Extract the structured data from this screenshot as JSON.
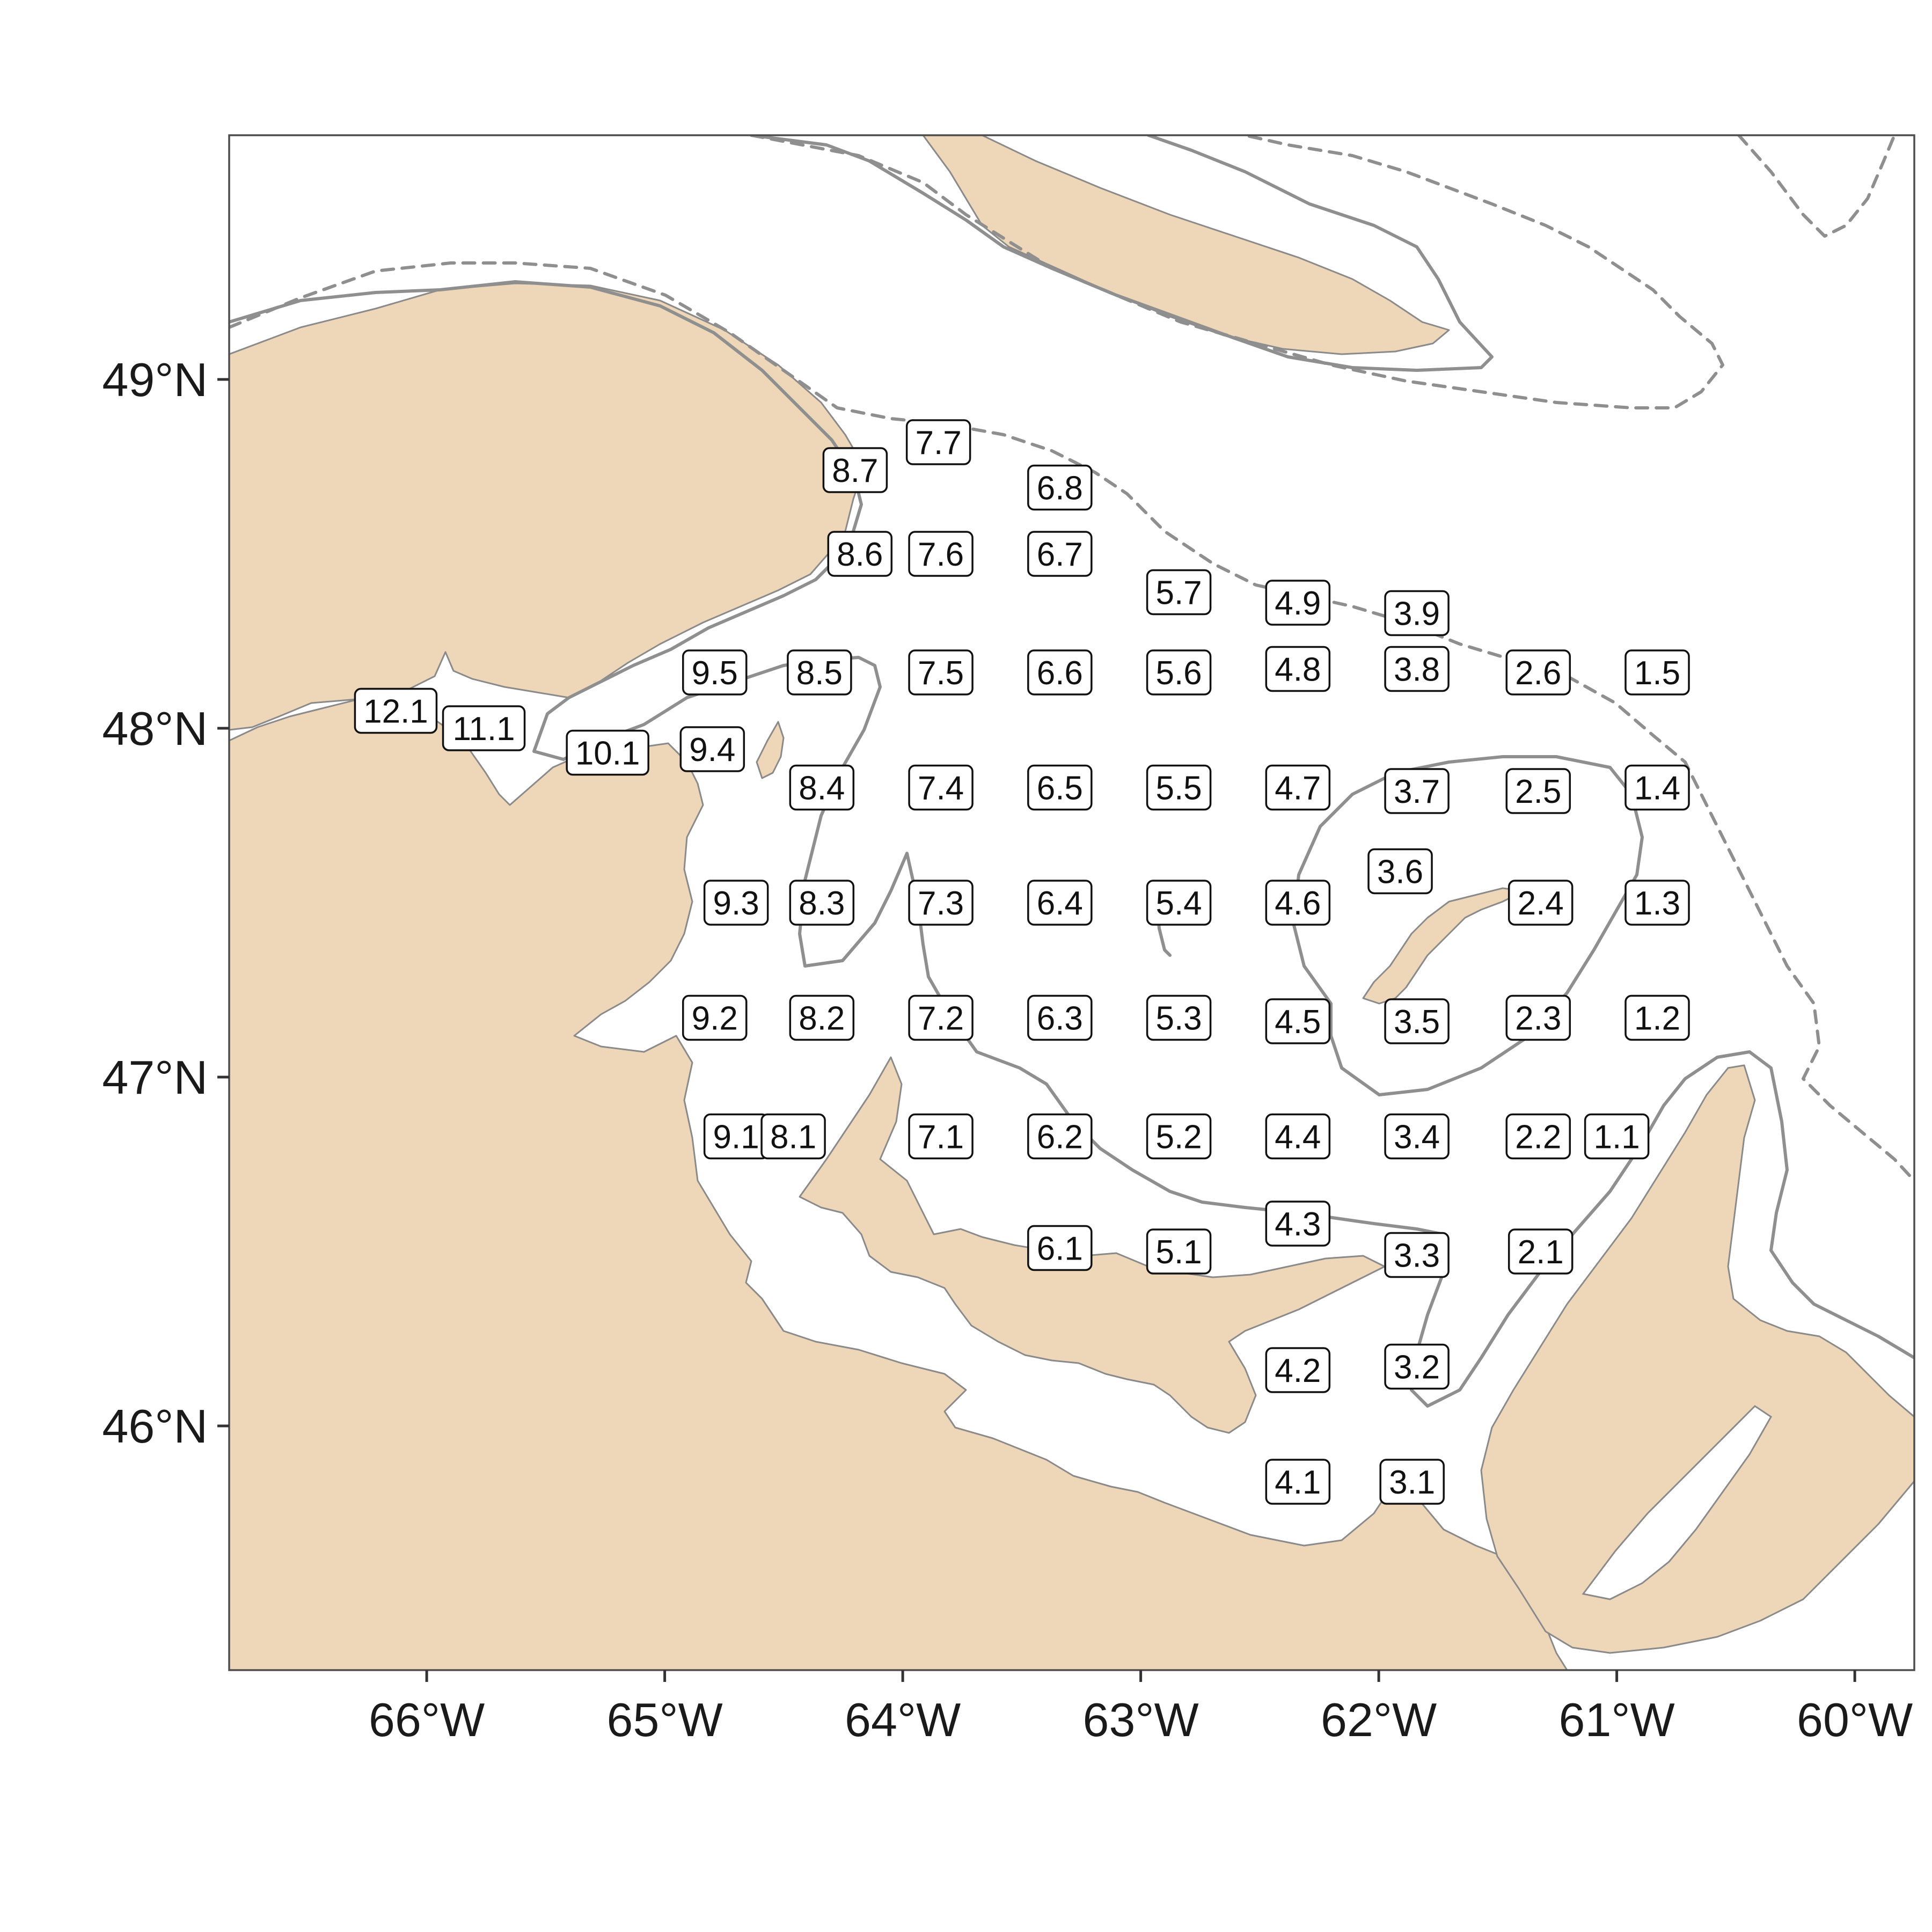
{
  "map": {
    "x_axis_labels": [
      "66°W",
      "65°W",
      "64°W",
      "63°W",
      "62°W",
      "61°W",
      "60°W"
    ],
    "y_axis_labels": [
      "49°N",
      "48°N",
      "47°N",
      "46°N"
    ],
    "colors": {
      "land": "#eed6b9",
      "coast": "#8a8a8a",
      "isobath": "#8f8f8f",
      "frame": "#4d4d4d"
    },
    "isobath_styles": [
      "solid",
      "dashed"
    ]
  },
  "chart_data": {
    "type": "scatter",
    "xlim": [
      -66.83,
      -59.75
    ],
    "ylim": [
      45.3,
      49.7
    ],
    "x_ticks": [
      -66,
      -65,
      -64,
      -63,
      -62,
      -61,
      -60
    ],
    "y_ticks": [
      49,
      48,
      47,
      46
    ],
    "stations": [
      {
        "label": "12.1",
        "lon": -66.13,
        "lat": 48.05
      },
      {
        "label": "11.1",
        "lon": -65.76,
        "lat": 48.0
      },
      {
        "label": "10.1",
        "lon": -65.24,
        "lat": 47.93
      },
      {
        "label": "9.5",
        "lon": -64.79,
        "lat": 48.16
      },
      {
        "label": "9.4",
        "lon": -64.8,
        "lat": 47.94
      },
      {
        "label": "9.3",
        "lon": -64.7,
        "lat": 47.5
      },
      {
        "label": "9.2",
        "lon": -64.79,
        "lat": 47.17
      },
      {
        "label": "9.1",
        "lon": -64.7,
        "lat": 46.83
      },
      {
        "label": "8.7",
        "lon": -64.2,
        "lat": 48.74
      },
      {
        "label": "8.6",
        "lon": -64.18,
        "lat": 48.5
      },
      {
        "label": "8.5",
        "lon": -64.35,
        "lat": 48.16
      },
      {
        "label": "8.4",
        "lon": -64.34,
        "lat": 47.83
      },
      {
        "label": "8.3",
        "lon": -64.34,
        "lat": 47.5
      },
      {
        "label": "8.2",
        "lon": -64.34,
        "lat": 47.17
      },
      {
        "label": "8.1",
        "lon": -64.46,
        "lat": 46.83
      },
      {
        "label": "7.7",
        "lon": -63.85,
        "lat": 48.82
      },
      {
        "label": "7.6",
        "lon": -63.84,
        "lat": 48.5
      },
      {
        "label": "7.5",
        "lon": -63.84,
        "lat": 48.16
      },
      {
        "label": "7.4",
        "lon": -63.84,
        "lat": 47.83
      },
      {
        "label": "7.3",
        "lon": -63.84,
        "lat": 47.5
      },
      {
        "label": "7.2",
        "lon": -63.84,
        "lat": 47.17
      },
      {
        "label": "7.1",
        "lon": -63.84,
        "lat": 46.83
      },
      {
        "label": "6.8",
        "lon": -63.34,
        "lat": 48.69
      },
      {
        "label": "6.7",
        "lon": -63.34,
        "lat": 48.5
      },
      {
        "label": "6.6",
        "lon": -63.34,
        "lat": 48.16
      },
      {
        "label": "6.5",
        "lon": -63.34,
        "lat": 47.83
      },
      {
        "label": "6.4",
        "lon": -63.34,
        "lat": 47.5
      },
      {
        "label": "6.3",
        "lon": -63.34,
        "lat": 47.17
      },
      {
        "label": "6.2",
        "lon": -63.34,
        "lat": 46.83
      },
      {
        "label": "6.1",
        "lon": -63.34,
        "lat": 46.51
      },
      {
        "label": "5.7",
        "lon": -62.84,
        "lat": 48.39
      },
      {
        "label": "5.6",
        "lon": -62.84,
        "lat": 48.16
      },
      {
        "label": "5.5",
        "lon": -62.84,
        "lat": 47.83
      },
      {
        "label": "5.4",
        "lon": -62.84,
        "lat": 47.5
      },
      {
        "label": "5.3",
        "lon": -62.84,
        "lat": 47.17
      },
      {
        "label": "5.2",
        "lon": -62.84,
        "lat": 46.83
      },
      {
        "label": "5.1",
        "lon": -62.84,
        "lat": 46.5
      },
      {
        "label": "4.9",
        "lon": -62.34,
        "lat": 48.36
      },
      {
        "label": "4.8",
        "lon": -62.34,
        "lat": 48.17
      },
      {
        "label": "4.7",
        "lon": -62.34,
        "lat": 47.83
      },
      {
        "label": "4.6",
        "lon": -62.34,
        "lat": 47.5
      },
      {
        "label": "4.5",
        "lon": -62.34,
        "lat": 47.16
      },
      {
        "label": "4.4",
        "lon": -62.34,
        "lat": 46.83
      },
      {
        "label": "4.3",
        "lon": -62.34,
        "lat": 46.58
      },
      {
        "label": "4.2",
        "lon": -62.34,
        "lat": 46.16
      },
      {
        "label": "4.1",
        "lon": -62.34,
        "lat": 45.84
      },
      {
        "label": "3.9",
        "lon": -61.84,
        "lat": 48.33
      },
      {
        "label": "3.8",
        "lon": -61.84,
        "lat": 48.17
      },
      {
        "label": "3.7",
        "lon": -61.84,
        "lat": 47.82
      },
      {
        "label": "3.6",
        "lon": -61.91,
        "lat": 47.59
      },
      {
        "label": "3.5",
        "lon": -61.84,
        "lat": 47.16
      },
      {
        "label": "3.4",
        "lon": -61.84,
        "lat": 46.83
      },
      {
        "label": "3.3",
        "lon": -61.84,
        "lat": 46.49
      },
      {
        "label": "3.2",
        "lon": -61.84,
        "lat": 46.17
      },
      {
        "label": "3.1",
        "lon": -61.86,
        "lat": 45.84
      },
      {
        "label": "2.6",
        "lon": -61.33,
        "lat": 48.16
      },
      {
        "label": "2.5",
        "lon": -61.33,
        "lat": 47.82
      },
      {
        "label": "2.4",
        "lon": -61.32,
        "lat": 47.5
      },
      {
        "label": "2.3",
        "lon": -61.33,
        "lat": 47.17
      },
      {
        "label": "2.2",
        "lon": -61.33,
        "lat": 46.83
      },
      {
        "label": "2.1",
        "lon": -61.32,
        "lat": 46.5
      },
      {
        "label": "1.5",
        "lon": -60.83,
        "lat": 48.16
      },
      {
        "label": "1.4",
        "lon": -60.83,
        "lat": 47.83
      },
      {
        "label": "1.3",
        "lon": -60.83,
        "lat": 47.5
      },
      {
        "label": "1.2",
        "lon": -60.83,
        "lat": 47.17
      },
      {
        "label": "1.1",
        "lon": -61.0,
        "lat": 46.83
      }
    ]
  }
}
